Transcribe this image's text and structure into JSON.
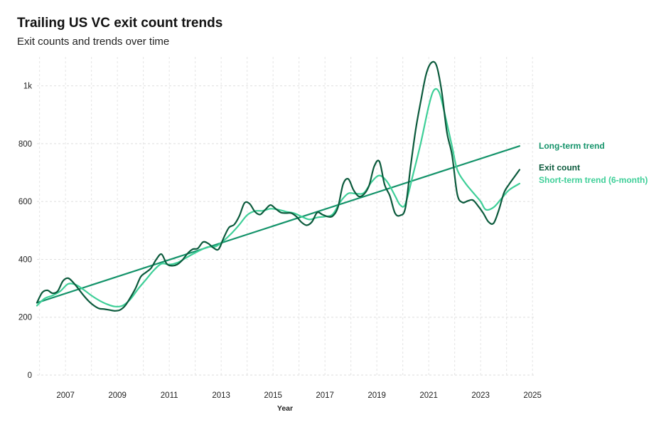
{
  "chart": {
    "title": "Trailing US VC exit count trends",
    "subtitle": "Exit counts and trends over time"
  },
  "chart_data": {
    "type": "line",
    "title": "Trailing US VC exit count trends",
    "subtitle": "Exit counts and trends over time",
    "xlabel": "Year",
    "ylabel": "",
    "xlim": [
      2005.9,
      2025.05
    ],
    "ylim": [
      0,
      1100
    ],
    "x_ticks": [
      2007,
      2009,
      2011,
      2013,
      2015,
      2017,
      2019,
      2021,
      2023,
      2025
    ],
    "y_ticks": [
      0,
      200,
      400,
      600,
      800,
      1000
    ],
    "y_tick_labels": [
      "0",
      "200",
      "400",
      "600",
      "800",
      "1k"
    ],
    "grid": true,
    "legend": "end-of-line labels at right",
    "series": [
      {
        "name": "Exit count",
        "color": "#0b5a3c",
        "points": [
          [
            2005.9,
            250
          ],
          [
            2006.1,
            285
          ],
          [
            2006.3,
            293
          ],
          [
            2006.5,
            283
          ],
          [
            2006.7,
            290
          ],
          [
            2006.9,
            325
          ],
          [
            2007.1,
            335
          ],
          [
            2007.3,
            320
          ],
          [
            2007.5,
            298
          ],
          [
            2007.7,
            275
          ],
          [
            2007.9,
            255
          ],
          [
            2008.1,
            240
          ],
          [
            2008.3,
            230
          ],
          [
            2008.5,
            228
          ],
          [
            2008.7,
            225
          ],
          [
            2008.9,
            222
          ],
          [
            2009.1,
            225
          ],
          [
            2009.3,
            240
          ],
          [
            2009.5,
            268
          ],
          [
            2009.7,
            300
          ],
          [
            2009.9,
            340
          ],
          [
            2010.1,
            355
          ],
          [
            2010.3,
            370
          ],
          [
            2010.5,
            400
          ],
          [
            2010.7,
            418
          ],
          [
            2010.9,
            385
          ],
          [
            2011.1,
            378
          ],
          [
            2011.3,
            382
          ],
          [
            2011.5,
            397
          ],
          [
            2011.7,
            420
          ],
          [
            2011.9,
            435
          ],
          [
            2012.1,
            438
          ],
          [
            2012.3,
            460
          ],
          [
            2012.5,
            455
          ],
          [
            2012.7,
            440
          ],
          [
            2012.9,
            435
          ],
          [
            2013.1,
            475
          ],
          [
            2013.3,
            510
          ],
          [
            2013.5,
            520
          ],
          [
            2013.7,
            550
          ],
          [
            2013.9,
            595
          ],
          [
            2014.1,
            592
          ],
          [
            2014.3,
            565
          ],
          [
            2014.5,
            555
          ],
          [
            2014.7,
            572
          ],
          [
            2014.9,
            588
          ],
          [
            2015.1,
            575
          ],
          [
            2015.3,
            562
          ],
          [
            2015.5,
            560
          ],
          [
            2015.7,
            560
          ],
          [
            2015.9,
            548
          ],
          [
            2016.1,
            528
          ],
          [
            2016.3,
            518
          ],
          [
            2016.5,
            530
          ],
          [
            2016.7,
            562
          ],
          [
            2016.9,
            555
          ],
          [
            2017.1,
            548
          ],
          [
            2017.3,
            550
          ],
          [
            2017.5,
            580
          ],
          [
            2017.7,
            660
          ],
          [
            2017.9,
            678
          ],
          [
            2018.1,
            640
          ],
          [
            2018.3,
            618
          ],
          [
            2018.5,
            625
          ],
          [
            2018.7,
            655
          ],
          [
            2018.9,
            722
          ],
          [
            2019.1,
            738
          ],
          [
            2019.3,
            658
          ],
          [
            2019.5,
            620
          ],
          [
            2019.7,
            560
          ],
          [
            2019.9,
            552
          ],
          [
            2020.1,
            578
          ],
          [
            2020.3,
            720
          ],
          [
            2020.5,
            850
          ],
          [
            2020.7,
            950
          ],
          [
            2020.9,
            1040
          ],
          [
            2021.1,
            1080
          ],
          [
            2021.3,
            1070
          ],
          [
            2021.5,
            980
          ],
          [
            2021.7,
            840
          ],
          [
            2021.9,
            760
          ],
          [
            2022.1,
            625
          ],
          [
            2022.3,
            597
          ],
          [
            2022.5,
            602
          ],
          [
            2022.7,
            605
          ],
          [
            2022.9,
            585
          ],
          [
            2023.1,
            560
          ],
          [
            2023.3,
            530
          ],
          [
            2023.5,
            525
          ],
          [
            2023.7,
            570
          ],
          [
            2023.9,
            630
          ],
          [
            2024.1,
            660
          ],
          [
            2024.3,
            685
          ],
          [
            2024.5,
            710
          ]
        ]
      },
      {
        "name": "Short-term trend (6-month)",
        "color": "#3ecf98",
        "points": [
          [
            2005.9,
            240
          ],
          [
            2006.2,
            265
          ],
          [
            2006.5,
            275
          ],
          [
            2006.8,
            290
          ],
          [
            2007.1,
            315
          ],
          [
            2007.4,
            312
          ],
          [
            2007.7,
            295
          ],
          [
            2008.0,
            275
          ],
          [
            2008.3,
            258
          ],
          [
            2008.6,
            245
          ],
          [
            2008.9,
            237
          ],
          [
            2009.2,
            240
          ],
          [
            2009.5,
            262
          ],
          [
            2009.8,
            298
          ],
          [
            2010.1,
            330
          ],
          [
            2010.4,
            362
          ],
          [
            2010.7,
            385
          ],
          [
            2011.0,
            382
          ],
          [
            2011.3,
            388
          ],
          [
            2011.6,
            403
          ],
          [
            2011.9,
            418
          ],
          [
            2012.2,
            432
          ],
          [
            2012.5,
            443
          ],
          [
            2012.8,
            445
          ],
          [
            2013.1,
            465
          ],
          [
            2013.4,
            490
          ],
          [
            2013.7,
            520
          ],
          [
            2014.0,
            553
          ],
          [
            2014.3,
            567
          ],
          [
            2014.6,
            568
          ],
          [
            2014.9,
            575
          ],
          [
            2015.2,
            572
          ],
          [
            2015.5,
            565
          ],
          [
            2015.8,
            560
          ],
          [
            2016.1,
            548
          ],
          [
            2016.4,
            538
          ],
          [
            2016.7,
            545
          ],
          [
            2017.0,
            548
          ],
          [
            2017.3,
            556
          ],
          [
            2017.6,
            600
          ],
          [
            2017.9,
            628
          ],
          [
            2018.2,
            627
          ],
          [
            2018.5,
            630
          ],
          [
            2018.8,
            668
          ],
          [
            2019.1,
            690
          ],
          [
            2019.4,
            668
          ],
          [
            2019.7,
            620
          ],
          [
            2019.9,
            588
          ],
          [
            2020.1,
            592
          ],
          [
            2020.4,
            695
          ],
          [
            2020.7,
            805
          ],
          [
            2021.0,
            930
          ],
          [
            2021.2,
            985
          ],
          [
            2021.4,
            978
          ],
          [
            2021.6,
            910
          ],
          [
            2021.9,
            790
          ],
          [
            2022.1,
            710
          ],
          [
            2022.4,
            665
          ],
          [
            2022.7,
            632
          ],
          [
            2023.0,
            600
          ],
          [
            2023.2,
            572
          ],
          [
            2023.5,
            580
          ],
          [
            2023.8,
            610
          ],
          [
            2024.1,
            640
          ],
          [
            2024.5,
            662
          ]
        ]
      },
      {
        "name": "Long-term trend",
        "color": "#14936a",
        "points": [
          [
            2005.9,
            250
          ],
          [
            2024.5,
            792
          ]
        ]
      }
    ]
  }
}
